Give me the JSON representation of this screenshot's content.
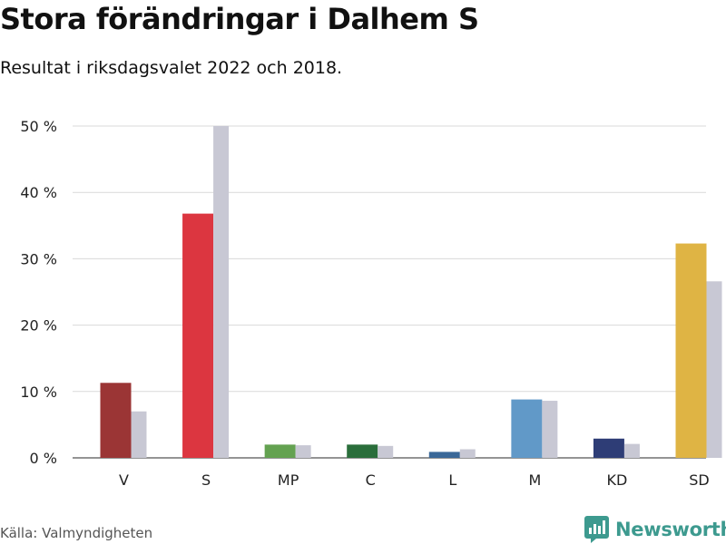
{
  "header": {
    "title": "Stora förändringar i Dalhem S",
    "subtitle": "Resultat i riksdagsvalet 2022 och 2018."
  },
  "footer": {
    "source": "Källa: Valmyndigheten",
    "brand": "Newsworthy",
    "brand_color": "#3d9a8f"
  },
  "chart_data": {
    "type": "bar",
    "title": "Stora förändringar i Dalhem S",
    "subtitle": "Resultat i riksdagsvalet 2022 och 2018.",
    "xlabel": "",
    "ylabel": "",
    "ylim": [
      0,
      50
    ],
    "yticks": [
      0,
      10,
      20,
      30,
      40,
      50
    ],
    "ytick_labels": [
      "0 %",
      "10 %",
      "20 %",
      "30 %",
      "40 %",
      "50 %"
    ],
    "grid": true,
    "legend": "none",
    "categories": [
      "V",
      "S",
      "MP",
      "C",
      "L",
      "M",
      "KD",
      "SD"
    ],
    "party_colors": [
      "#9b3535",
      "#dc3640",
      "#64a251",
      "#2a6e3b",
      "#3a6898",
      "#6199c8",
      "#2e3d76",
      "#dfb444"
    ],
    "comparison_color": "#c8c8d4",
    "series": [
      {
        "values": [
          11.3,
          36.8,
          2.0,
          2.0,
          0.9,
          8.8,
          2.9,
          32.3
        ]
      },
      {
        "values": [
          7.0,
          50.0,
          1.9,
          1.8,
          1.3,
          8.6,
          2.1,
          26.6
        ]
      }
    ]
  }
}
